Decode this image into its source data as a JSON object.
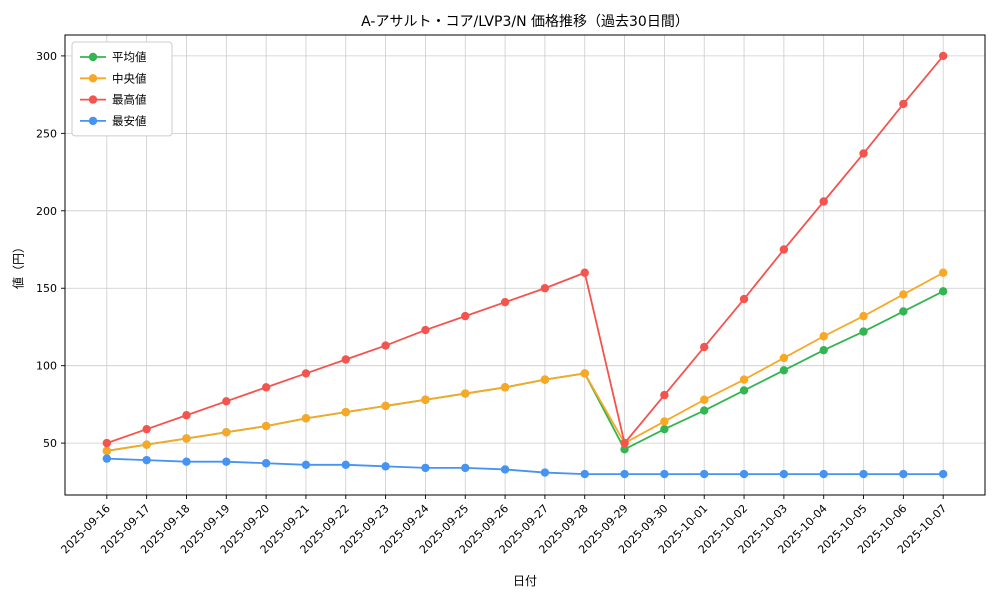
{
  "chart_data": {
    "type": "line",
    "title": "A-アサルト・コア/LVP3/N 価格推移（過去30日間）",
    "xlabel": "日付",
    "ylabel": "値（円）",
    "ylim": [
      16.5,
      313.5
    ],
    "yticks": [
      50,
      100,
      150,
      200,
      250,
      300
    ],
    "grid": true,
    "grid_color": "#cccccc",
    "axis_color": "#000000",
    "legend_position": "upper left",
    "categories": [
      "2025-09-16",
      "2025-09-17",
      "2025-09-18",
      "2025-09-19",
      "2025-09-20",
      "2025-09-21",
      "2025-09-22",
      "2025-09-23",
      "2025-09-24",
      "2025-09-25",
      "2025-09-26",
      "2025-09-27",
      "2025-09-28",
      "2025-09-29",
      "2025-09-30",
      "2025-10-01",
      "2025-10-02",
      "2025-10-03",
      "2025-10-04",
      "2025-10-05",
      "2025-10-06",
      "2025-10-07"
    ],
    "series": [
      {
        "name": "平均値",
        "color": "#33b551",
        "values": [
          45,
          49,
          53,
          57,
          61,
          66,
          70,
          74,
          78,
          82,
          86,
          91,
          95,
          46,
          59,
          71,
          84,
          97,
          110,
          122,
          135,
          148
        ]
      },
      {
        "name": "中央値",
        "color": "#f9a825",
        "values": [
          45,
          49,
          53,
          57,
          61,
          66,
          70,
          74,
          78,
          82,
          86,
          91,
          95,
          50,
          64,
          78,
          91,
          105,
          119,
          132,
          146,
          160
        ]
      },
      {
        "name": "最高値",
        "color": "#f4544e",
        "values": [
          50,
          59,
          68,
          77,
          86,
          95,
          104,
          113,
          123,
          132,
          141,
          150,
          160,
          50,
          81,
          112,
          143,
          175,
          206,
          237,
          269,
          300
        ]
      },
      {
        "name": "最安値",
        "color": "#4593f2",
        "values": [
          40,
          39,
          38,
          38,
          37,
          36,
          36,
          35,
          34,
          34,
          33,
          31,
          30,
          30,
          30,
          30,
          30,
          30,
          30,
          30,
          30,
          30
        ]
      }
    ]
  }
}
